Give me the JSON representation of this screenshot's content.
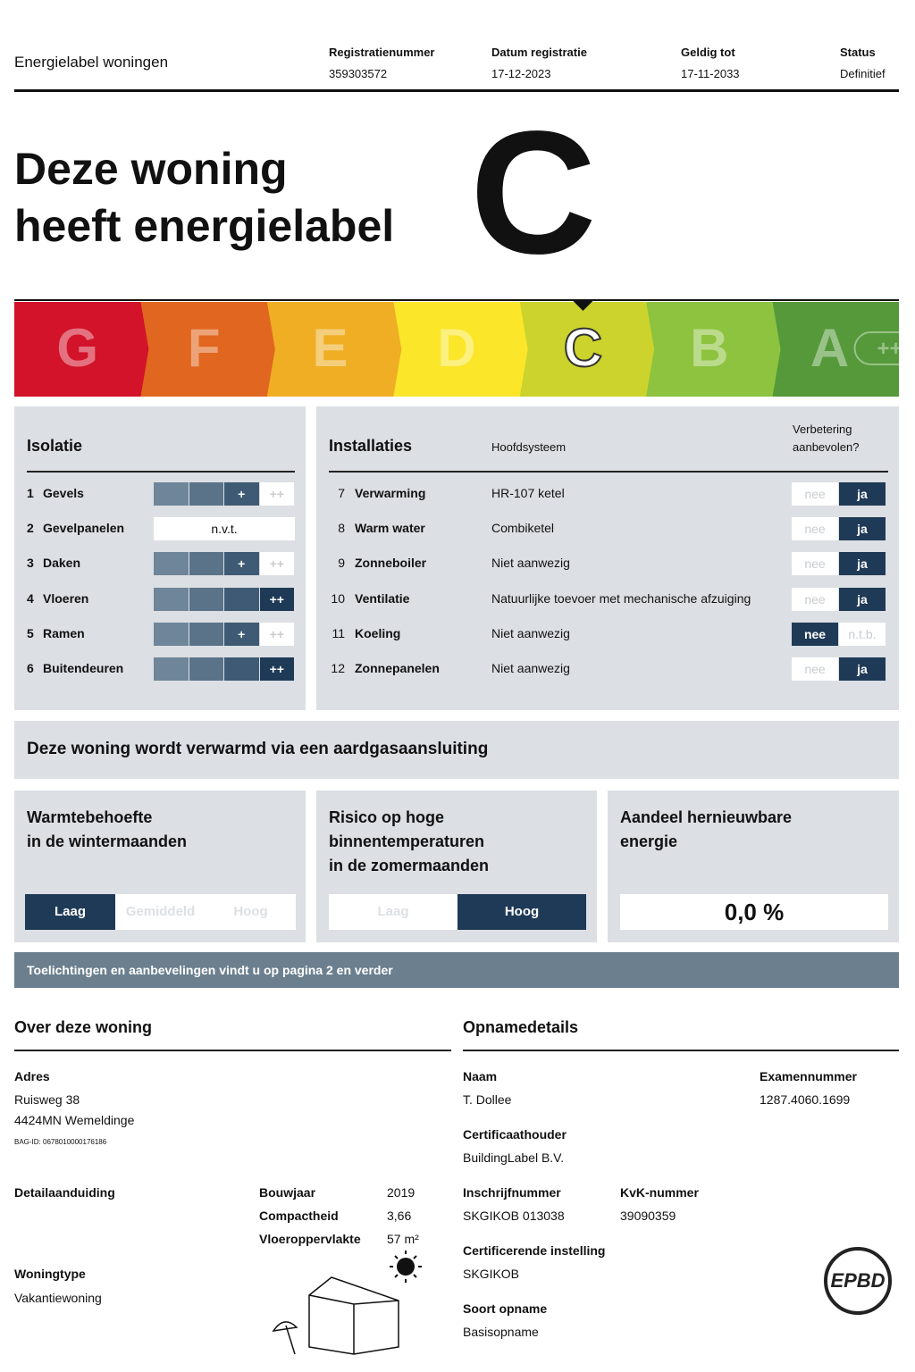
{
  "header": {
    "title": "Energielabel woningen",
    "fields": [
      {
        "label": "Registratienummer",
        "value": "359303572"
      },
      {
        "label": "Datum registratie",
        "value": "17-12-2023"
      },
      {
        "label": "Geldig tot",
        "value": "17-11-2033"
      },
      {
        "label": "Status",
        "value": "Definitief"
      }
    ]
  },
  "label": {
    "heading": [
      "Deze woning",
      "heeft energielabel"
    ],
    "grade": "C"
  },
  "scale": {
    "classes": [
      "G",
      "F",
      "E",
      "D",
      "C",
      "B",
      "A"
    ],
    "colors": [
      "#d2132a",
      "#e1661f",
      "#efae24",
      "#fbe62a",
      "#cbd32c",
      "#8dc33f",
      "#55993b"
    ],
    "a_extra": "++++"
  },
  "isolatie": {
    "title": "Isolatie",
    "segment_labels": [
      "+",
      "++"
    ],
    "rows": [
      {
        "number": "1",
        "name": "Gevels",
        "level": 3
      },
      {
        "number": "2",
        "name": "Gevelpanelen",
        "rating": "n.v.t."
      },
      {
        "number": "3",
        "name": "Daken",
        "level": 3
      },
      {
        "number": "4",
        "name": "Vloeren",
        "level": 4
      },
      {
        "number": "5",
        "name": "Ramen",
        "level": 3
      },
      {
        "number": "6",
        "name": "Buitendeuren",
        "level": 4
      }
    ]
  },
  "installaties": {
    "title": "Installaties",
    "system_header": "Hoofdsysteem",
    "advice_header": [
      "Verbetering",
      "aanbevolen?"
    ],
    "rows": [
      {
        "number": "7",
        "name": "Verwarming",
        "system": "HR-107 ketel",
        "options": [
          "nee",
          "ja"
        ],
        "selected": 1
      },
      {
        "number": "8",
        "name": "Warm water",
        "system": "Combiketel",
        "options": [
          "nee",
          "ja"
        ],
        "selected": 1
      },
      {
        "number": "9",
        "name": "Zonneboiler",
        "system": "Niet aanwezig",
        "options": [
          "nee",
          "ja"
        ],
        "selected": 1
      },
      {
        "number": "10",
        "name": "Ventilatie",
        "system": "Natuurlijke toevoer met mechanische afzuiging",
        "options": [
          "nee",
          "ja"
        ],
        "selected": 1
      },
      {
        "number": "11",
        "name": "Koeling",
        "system": "Niet aanwezig",
        "options": [
          "nee",
          "n.t.b."
        ],
        "selected": 0
      },
      {
        "number": "12",
        "name": "Zonnepanelen",
        "system": "Niet aanwezig",
        "options": [
          "nee",
          "ja"
        ],
        "selected": 1
      }
    ]
  },
  "heating_note": "Deze woning wordt verwarmd via een aardgasaansluiting",
  "indicators": {
    "heat_demand": {
      "title": [
        "Warmtebehoefte",
        "in de wintermaanden"
      ],
      "options": [
        "Laag",
        "Gemiddeld",
        "Hoog"
      ],
      "selected": 0
    },
    "overheating": {
      "title": [
        "Risico op hoge",
        "binnentemperaturen",
        "in de zomermaanden"
      ],
      "options": [
        "Laag",
        "Hoog"
      ],
      "selected": 1
    },
    "renewable": {
      "title": [
        "Aandeel hernieuwbare",
        "energie"
      ],
      "value": "0,0 %"
    }
  },
  "footer_note": "Toelichtingen en aanbevelingen vindt u op pagina 2 en verder",
  "woning": {
    "title": "Over deze woning",
    "address_label": "Adres",
    "address": [
      "Ruisweg 38",
      "4424MN Wemeldinge"
    ],
    "bag_id": "BAG-ID: 0678010000176186",
    "detail_label": "Detailaanduiding",
    "facts": [
      {
        "label": "Bouwjaar",
        "value": "2019"
      },
      {
        "label": "Compactheid",
        "value": "3,66"
      },
      {
        "label": "Vloeroppervlakte",
        "value": "57 m²"
      }
    ],
    "type_label": "Woningtype",
    "type": "Vakantiewoning"
  },
  "opname": {
    "title": "Opnamedetails",
    "fields": [
      {
        "label": "Naam",
        "value": "T. Dollee"
      },
      {
        "label": "Examennummer",
        "value": "1287.4060.1699"
      },
      {
        "label": "Certificaathouder",
        "value": "BuildingLabel B.V."
      },
      {
        "label": "Inschrijfnummer",
        "value": "SKGIKOB 013038"
      },
      {
        "label": "KvK-nummer",
        "value": "39090359"
      },
      {
        "label": "Certificerende instelling",
        "value": "SKGIKOB"
      },
      {
        "label": "Soort opname",
        "value": "Basisopname"
      }
    ],
    "logo": "EPBD"
  }
}
